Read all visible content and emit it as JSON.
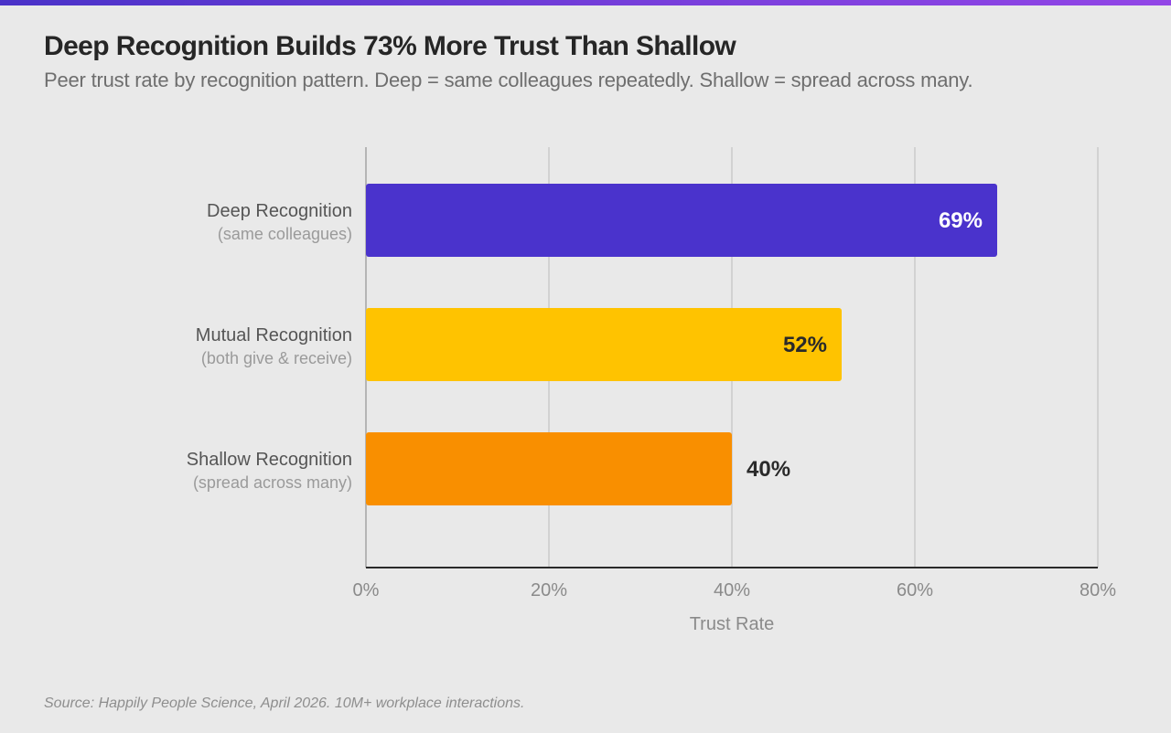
{
  "header": {
    "title": "Deep Recognition Builds 73% More Trust Than Shallow",
    "subtitle": "Peer trust rate by recognition pattern. Deep = same colleagues repeatedly. Shallow = spread across many."
  },
  "footer": {
    "source": "Source: Happily People Science, April 2026. 10M+ workplace interactions."
  },
  "colors": {
    "accent_bar_start": "#4a32c8",
    "accent_bar_end": "#9246e6",
    "deep": "#4a33cc",
    "mutual": "#ffc300",
    "shallow": "#f98f00"
  },
  "chart_data": {
    "type": "bar",
    "orientation": "horizontal",
    "title": "Deep Recognition Builds 73% More Trust Than Shallow",
    "subtitle": "Peer trust rate by recognition pattern. Deep = same colleagues repeatedly. Shallow = spread across many.",
    "xlabel": "Trust Rate",
    "ylabel": "",
    "xlim": [
      0,
      80
    ],
    "xticks": [
      0,
      20,
      40,
      60,
      80
    ],
    "xtick_labels": [
      "0%",
      "20%",
      "40%",
      "60%",
      "80%"
    ],
    "grid": "vertical",
    "legend": "none",
    "categories": [
      {
        "label": "Deep Recognition",
        "sublabel": "(same colleagues)",
        "value": 69,
        "value_label": "69%",
        "color": "#4a33cc",
        "label_color": "#ffffff",
        "label_position": "inside"
      },
      {
        "label": "Mutual Recognition",
        "sublabel": "(both give & receive)",
        "value": 52,
        "value_label": "52%",
        "color": "#ffc300",
        "label_color": "#2a2a2a",
        "label_position": "inside"
      },
      {
        "label": "Shallow Recognition",
        "sublabel": "(spread across many)",
        "value": 40,
        "value_label": "40%",
        "color": "#f98f00",
        "label_color": "#2a2a2a",
        "label_position": "outside"
      }
    ]
  }
}
